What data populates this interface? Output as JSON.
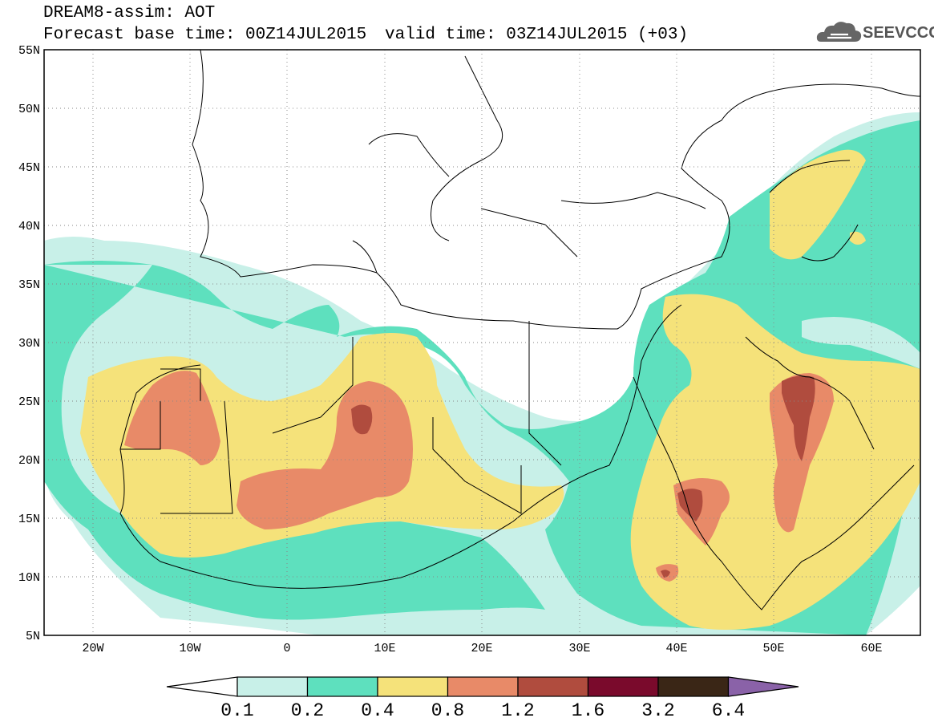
{
  "header": {
    "title_line1": "DREAM8-assim: AOT",
    "title_line2": "Forecast base time: 00Z14JUL2015",
    "valid_time": "valid time: 03Z14JUL2015 (+03)",
    "logo_text": "SEEVCCC",
    "logo_icon": "cloud-icon"
  },
  "map": {
    "lon_range": [
      -25,
      65
    ],
    "lat_range": [
      5,
      55
    ],
    "lat_labels": [
      "55N",
      "50N",
      "45N",
      "40N",
      "35N",
      "30N",
      "25N",
      "20N",
      "15N",
      "10N",
      "5N"
    ],
    "lon_labels": [
      "20W",
      "10W",
      "0",
      "10E",
      "20E",
      "30E",
      "40E",
      "50E",
      "60E"
    ],
    "grid": "dotted"
  },
  "colorbar": {
    "labels": [
      "0.1",
      "0.2",
      "0.4",
      "0.8",
      "1.2",
      "1.6",
      "3.2",
      "6.4"
    ],
    "colors": [
      "#ffffff",
      "#c8f0e8",
      "#5ee0be",
      "#f5e27a",
      "#e88a68",
      "#b04c3e",
      "#7a0a2c",
      "#3a2616",
      "#8a62a8"
    ]
  }
}
